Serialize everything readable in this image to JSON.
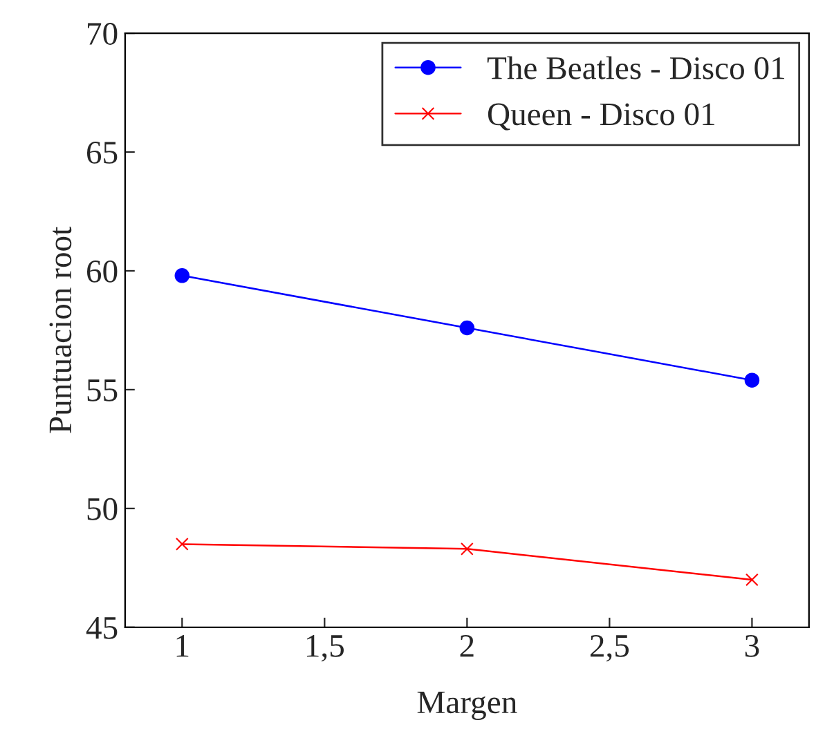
{
  "chart_data": {
    "type": "line",
    "xlabel": "Margen",
    "ylabel": "Puntuacion root",
    "x": [
      1,
      2,
      3
    ],
    "series": [
      {
        "name": "The Beatles - Disco 01",
        "color": "#0000ff",
        "values": [
          59.8,
          57.6,
          55.4
        ],
        "marker": "circle"
      },
      {
        "name": "Queen - Disco 01",
        "color": "#ff0000",
        "values": [
          48.5,
          48.3,
          47.0
        ],
        "marker": "cross"
      }
    ],
    "xlim": [
      0.8,
      3.2
    ],
    "xticks": [
      1,
      {
        "value": 1.5,
        "label": "1,5"
      },
      2,
      {
        "value": 2.5,
        "label": "2,5"
      },
      3
    ],
    "ylim": [
      45,
      70
    ],
    "yticks": [
      45,
      50,
      55,
      60,
      65,
      70
    ],
    "grid": false,
    "legend": "top right",
    "line_style": "solid"
  }
}
